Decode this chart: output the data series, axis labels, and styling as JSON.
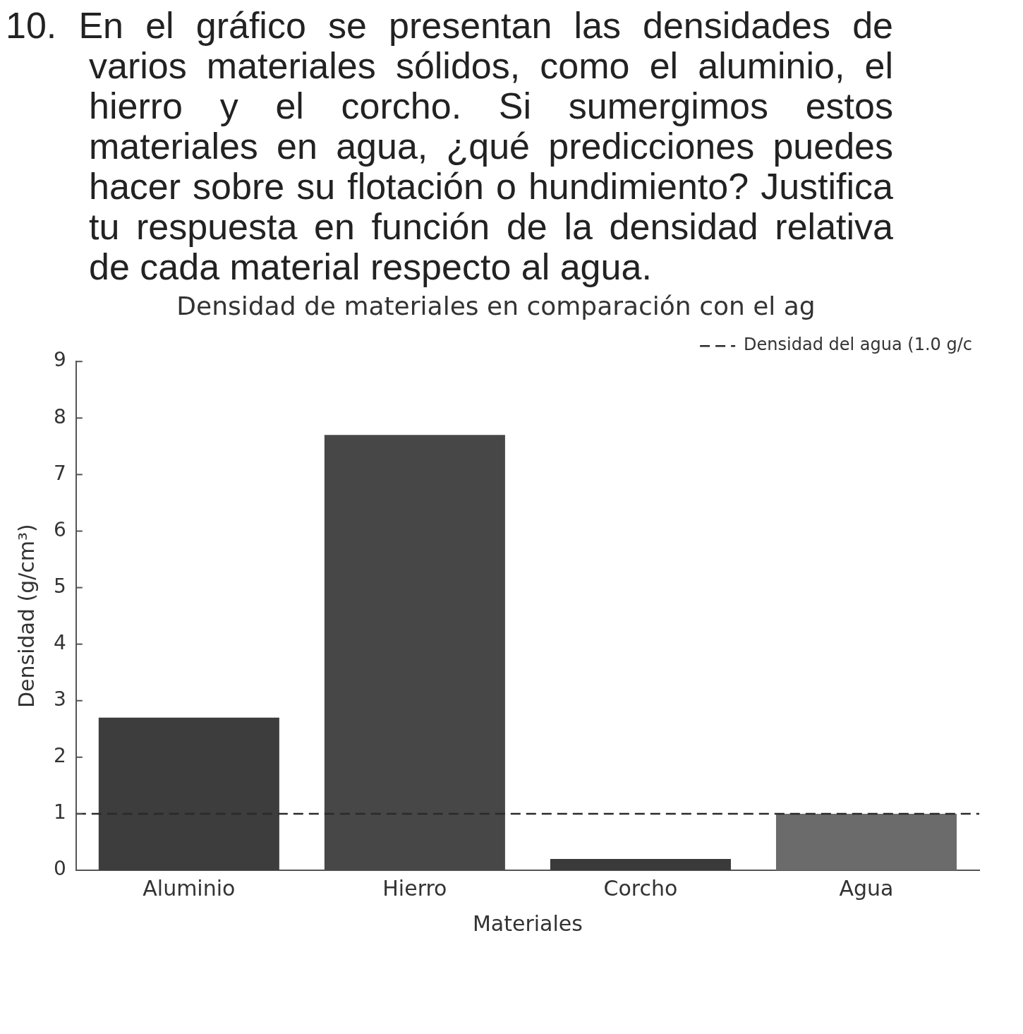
{
  "chart_data": {
    "type": "bar",
    "title": "Densidad de materiales en comparación con el ag",
    "xlabel": "Materiales",
    "ylabel": "Densidad (g/cm³)",
    "annotations": [
      "10. En el gráfico se presentan las densidades de varios materiales sólidos, como el aluminio, el hierro y el corcho. Si sumergimos estos materiales en agua, ¿qué predicciones puedes hacer sobre su flotación o hundimiento? Justifica tu respuesta en función de la densidad relativa de cada material respecto al agua."
    ],
    "categories": [
      "Aluminio",
      "Hierro",
      "Corcho",
      "Agua"
    ],
    "values": [
      2.7,
      7.7,
      0.2,
      1
    ],
    "colors": [
      "#3d3d3d",
      "#474747",
      "#3a3a3a",
      "#6b6b6b"
    ],
    "ylim": [
      0,
      9
    ],
    "yticks": [
      0,
      1,
      2,
      3,
      4,
      5,
      6,
      7,
      8,
      9
    ],
    "ref_lines": [
      {
        "axis": "y",
        "value": 1,
        "label": "Densidad del agua (1.0 g/c",
        "line_style": "dashed",
        "color": "#2a2a2a"
      }
    ],
    "legend": "top right",
    "grid": false
  }
}
